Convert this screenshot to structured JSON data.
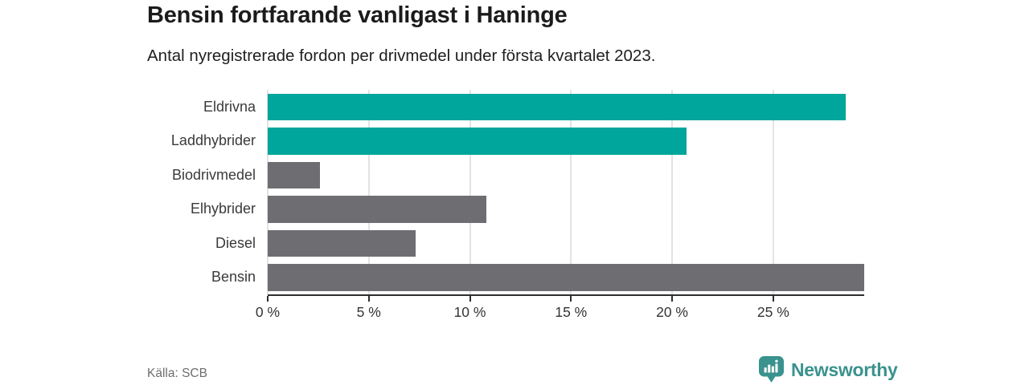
{
  "chart_data": {
    "type": "bar",
    "orientation": "horizontal",
    "title": "Bensin fortfarande vanligast i Haninge",
    "subtitle": "Antal nyregistrerade fordon per drivmedel under första kvartalet 2023.",
    "categories": [
      "Eldrivna",
      "Laddhybrider",
      "Biodrivmedel",
      "Elhybrider",
      "Diesel",
      "Bensin"
    ],
    "values": [
      28.6,
      20.7,
      2.6,
      10.8,
      7.3,
      29.5
    ],
    "bar_colors": [
      "#00a59b",
      "#00a59b",
      "#6e6d72",
      "#6e6d72",
      "#6e6d72",
      "#6e6d72"
    ],
    "xlim": [
      0,
      29.5
    ],
    "x_ticks": [
      0,
      5,
      10,
      15,
      20,
      25
    ],
    "x_tick_labels": [
      "0 %",
      "5 %",
      "10 %",
      "15 %",
      "20 %",
      "25 %"
    ],
    "grid": "vertical-light-gray",
    "legend": "none",
    "xlabel": "",
    "ylabel": ""
  },
  "colors": {
    "accent_teal": "#00a59b",
    "bar_gray": "#6e6d72",
    "gridline": "#e3e3e3",
    "axis": "#2e2e2e",
    "title_text": "#1b1b1b",
    "muted_text": "#6e6e6e",
    "brand_teal": "#3a928e"
  },
  "footer": {
    "source": "Källa: SCB",
    "brand": "Newsworthy"
  }
}
